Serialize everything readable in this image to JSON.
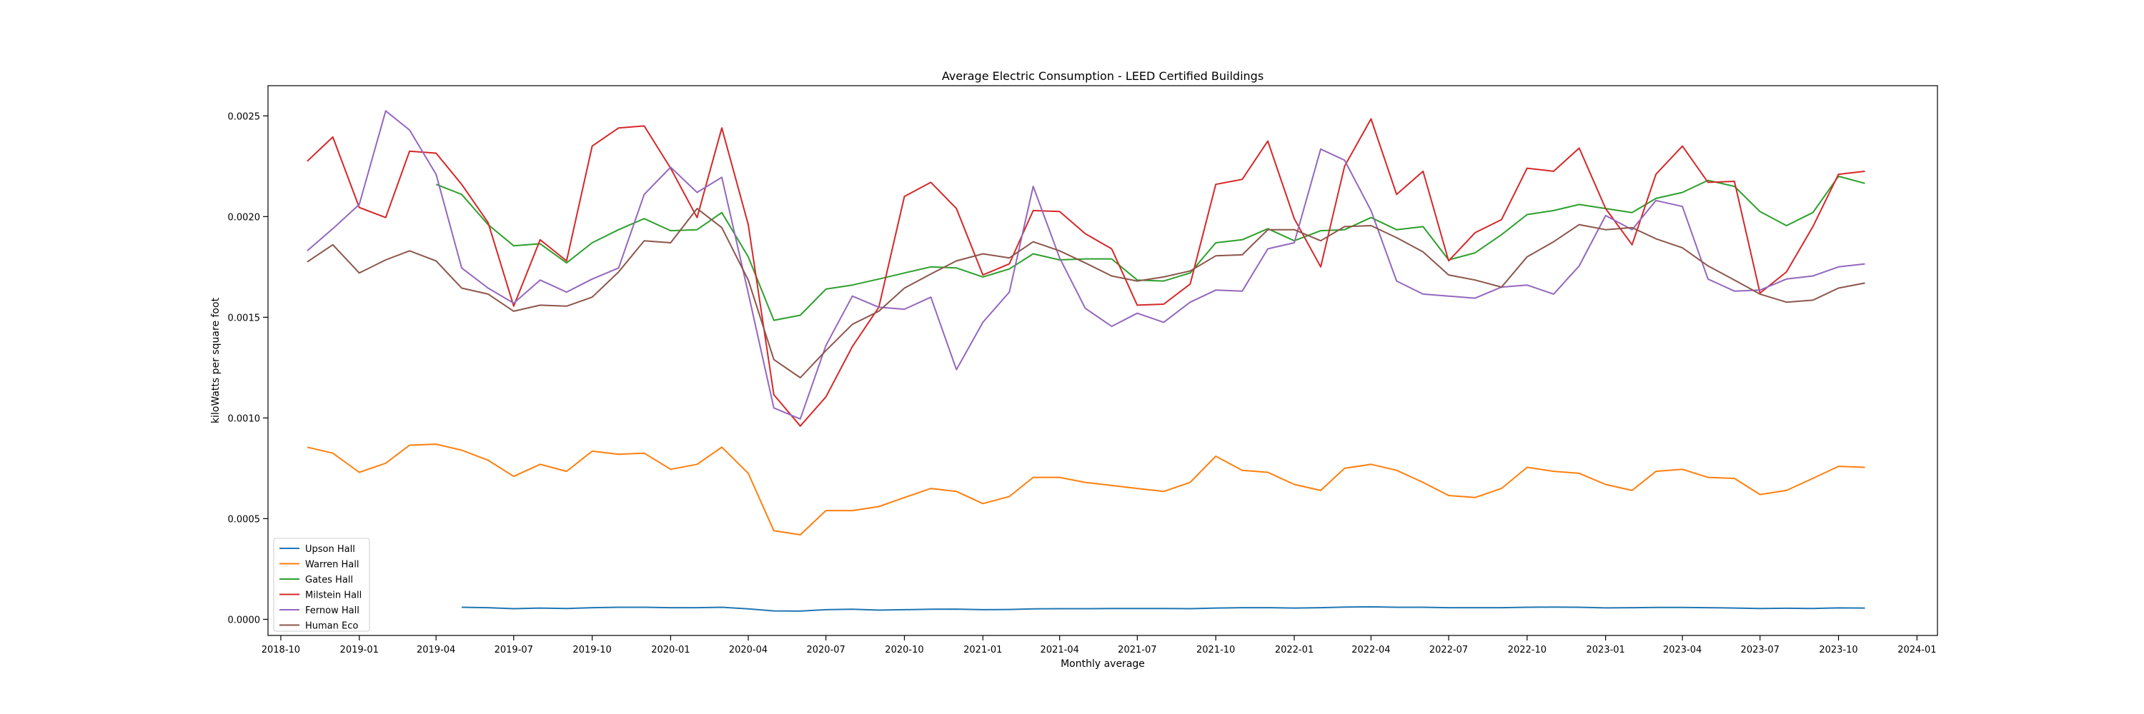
{
  "chart_data": {
    "type": "line",
    "title": "Average Electric Consumption - LEED Certified Buildings",
    "xlabel": "Monthly average",
    "ylabel": "kiloWatts per square foot",
    "xlim": [
      "2018-09-16",
      "2024-01-25"
    ],
    "ylim": [
      -8e-05,
      0.00265
    ],
    "grid": false,
    "legend_position": "lower-left",
    "x_ticks": [
      "2018-10",
      "2019-01",
      "2019-04",
      "2019-07",
      "2019-10",
      "2020-01",
      "2020-04",
      "2020-07",
      "2020-10",
      "2021-01",
      "2021-04",
      "2021-07",
      "2021-10",
      "2022-01",
      "2022-04",
      "2022-07",
      "2022-10",
      "2023-01",
      "2023-04",
      "2023-07",
      "2023-10",
      "2024-01"
    ],
    "y_ticks": [
      "0.0000",
      "0.0005",
      "0.0010",
      "0.0015",
      "0.0020",
      "0.0025"
    ],
    "y_tick_values": [
      0,
      0.0005,
      0.001,
      0.0015,
      0.002,
      0.0025
    ],
    "x": [
      "2018-11-01",
      "2018-12-01",
      "2019-01-01",
      "2019-02-01",
      "2019-03-01",
      "2019-04-01",
      "2019-05-01",
      "2019-06-01",
      "2019-07-01",
      "2019-08-01",
      "2019-09-01",
      "2019-10-01",
      "2019-11-01",
      "2019-12-01",
      "2020-01-01",
      "2020-02-01",
      "2020-03-01",
      "2020-04-01",
      "2020-05-01",
      "2020-06-01",
      "2020-07-01",
      "2020-08-01",
      "2020-09-01",
      "2020-10-01",
      "2020-11-01",
      "2020-12-01",
      "2021-01-01",
      "2021-02-01",
      "2021-03-01",
      "2021-04-01",
      "2021-05-01",
      "2021-06-01",
      "2021-07-01",
      "2021-08-01",
      "2021-09-01",
      "2021-10-01",
      "2021-11-01",
      "2021-12-01",
      "2022-01-01",
      "2022-02-01",
      "2022-03-01",
      "2022-04-01",
      "2022-05-01",
      "2022-06-01",
      "2022-07-01",
      "2022-08-01",
      "2022-09-01",
      "2022-10-01",
      "2022-11-01",
      "2022-12-01",
      "2023-01-01",
      "2023-02-01",
      "2023-03-01",
      "2023-04-01",
      "2023-05-01",
      "2023-06-01",
      "2023-07-01",
      "2023-08-01",
      "2023-09-01",
      "2023-10-01",
      "2023-11-01"
    ],
    "series": [
      {
        "name": "Upson Hall",
        "color": "#1f77b4",
        "values": [
          null,
          null,
          null,
          null,
          null,
          null,
          6e-05,
          5.8e-05,
          5.3e-05,
          5.6e-05,
          5.4e-05,
          5.8e-05,
          6e-05,
          6e-05,
          5.8e-05,
          5.8e-05,
          6e-05,
          5.2e-05,
          4.2e-05,
          4.1e-05,
          4.8e-05,
          5e-05,
          4.6e-05,
          4.8e-05,
          5e-05,
          5.1e-05,
          4.8e-05,
          4.9e-05,
          5.2e-05,
          5.3e-05,
          5.3e-05,
          5.4e-05,
          5.4e-05,
          5.4e-05,
          5.3e-05,
          5.6e-05,
          5.8e-05,
          5.8e-05,
          5.6e-05,
          5.8e-05,
          6.1e-05,
          6.2e-05,
          6e-05,
          6e-05,
          5.8e-05,
          5.8e-05,
          5.8e-05,
          6e-05,
          6.1e-05,
          6e-05,
          5.7e-05,
          5.8e-05,
          5.9e-05,
          5.9e-05,
          5.8e-05,
          5.6e-05,
          5.4e-05,
          5.5e-05,
          5.4e-05,
          5.7e-05,
          5.6e-05
        ]
      },
      {
        "name": "Warren Hall",
        "color": "#ff7f0e",
        "values": [
          0.000855,
          0.000825,
          0.00073,
          0.000775,
          0.000865,
          0.00087,
          0.00084,
          0.00079,
          0.00071,
          0.00077,
          0.000735,
          0.000835,
          0.00082,
          0.000825,
          0.000745,
          0.00077,
          0.000855,
          0.000725,
          0.00044,
          0.00042,
          0.00054,
          0.00054,
          0.00056,
          0.000605,
          0.00065,
          0.000635,
          0.000575,
          0.00061,
          0.000705,
          0.000705,
          0.00068,
          0.000665,
          0.00065,
          0.000635,
          0.00068,
          0.00081,
          0.00074,
          0.00073,
          0.00067,
          0.00064,
          0.00075,
          0.00077,
          0.00074,
          0.00068,
          0.000615,
          0.000605,
          0.00065,
          0.000755,
          0.000735,
          0.000725,
          0.00067,
          0.00064,
          0.000735,
          0.000745,
          0.000705,
          0.0007,
          0.00062,
          0.00064,
          0.0007,
          0.00076,
          0.000755
        ]
      },
      {
        "name": "Gates Hall",
        "color": "#2ca02c",
        "values": [
          null,
          null,
          null,
          null,
          null,
          0.00216,
          0.00211,
          0.00196,
          0.001855,
          0.001865,
          0.00177,
          0.00187,
          0.001935,
          0.00199,
          0.00193,
          0.001935,
          0.00202,
          0.0018,
          0.001485,
          0.00151,
          0.00164,
          0.00166,
          0.00169,
          0.00172,
          0.00175,
          0.001745,
          0.0017,
          0.00174,
          0.001815,
          0.001785,
          0.00179,
          0.00179,
          0.001685,
          0.00168,
          0.00172,
          0.00187,
          0.001885,
          0.00194,
          0.00188,
          0.00193,
          0.001935,
          0.001995,
          0.001935,
          0.00195,
          0.001785,
          0.00182,
          0.00191,
          0.00201,
          0.00203,
          0.00206,
          0.00204,
          0.00202,
          0.00209,
          0.00212,
          0.00218,
          0.00215,
          0.002025,
          0.001955,
          0.00202,
          0.0022,
          0.002165
        ]
      },
      {
        "name": "Milstein Hall",
        "color": "#d62728",
        "values": [
          0.002275,
          0.002395,
          0.002045,
          0.001995,
          0.002325,
          0.002315,
          0.00216,
          0.00197,
          0.001555,
          0.001885,
          0.00178,
          0.00235,
          0.00244,
          0.00245,
          0.00224,
          0.001995,
          0.00244,
          0.00196,
          0.001115,
          0.00096,
          0.001105,
          0.001355,
          0.00155,
          0.0021,
          0.00217,
          0.00204,
          0.00171,
          0.001765,
          0.00203,
          0.002025,
          0.001915,
          0.00184,
          0.00156,
          0.001565,
          0.001665,
          0.00216,
          0.002185,
          0.002375,
          0.00199,
          0.00175,
          0.00225,
          0.002485,
          0.00211,
          0.002225,
          0.00178,
          0.00192,
          0.001985,
          0.00224,
          0.002225,
          0.00234,
          0.00204,
          0.00186,
          0.00221,
          0.00235,
          0.00217,
          0.002175,
          0.00162,
          0.001725,
          0.00195,
          0.00221,
          0.002225
        ]
      },
      {
        "name": "Fernow Hall",
        "color": "#9467bd",
        "values": [
          0.00183,
          0.00194,
          0.00206,
          0.002525,
          0.00243,
          0.00221,
          0.001745,
          0.001645,
          0.00157,
          0.001685,
          0.001625,
          0.00169,
          0.001745,
          0.00211,
          0.002245,
          0.00212,
          0.002195,
          0.00162,
          0.00105,
          0.000995,
          0.00136,
          0.001605,
          0.00155,
          0.00154,
          0.0016,
          0.00124,
          0.001475,
          0.001625,
          0.00215,
          0.001795,
          0.001545,
          0.001455,
          0.00152,
          0.001475,
          0.001575,
          0.001635,
          0.00163,
          0.00184,
          0.00187,
          0.002335,
          0.00228,
          0.00203,
          0.00168,
          0.001615,
          0.001605,
          0.001595,
          0.00165,
          0.00166,
          0.001615,
          0.001755,
          0.002005,
          0.001935,
          0.00208,
          0.00205,
          0.00169,
          0.00163,
          0.001635,
          0.00169,
          0.001705,
          0.00175,
          0.001765
        ]
      },
      {
        "name": "Human Eco",
        "color": "#8c564b",
        "values": [
          0.001775,
          0.00186,
          0.00172,
          0.001785,
          0.00183,
          0.00178,
          0.001645,
          0.001615,
          0.00153,
          0.00156,
          0.001555,
          0.0016,
          0.001725,
          0.00188,
          0.00187,
          0.00204,
          0.001945,
          0.001685,
          0.00129,
          0.0012,
          0.001335,
          0.001465,
          0.00153,
          0.001645,
          0.001715,
          0.00178,
          0.001815,
          0.001795,
          0.001875,
          0.00183,
          0.00177,
          0.001705,
          0.00168,
          0.0017,
          0.00173,
          0.001805,
          0.00181,
          0.001935,
          0.001935,
          0.00188,
          0.00195,
          0.001955,
          0.001895,
          0.001825,
          0.00171,
          0.001685,
          0.00165,
          0.0018,
          0.001875,
          0.00196,
          0.001935,
          0.001945,
          0.00189,
          0.001845,
          0.001755,
          0.001685,
          0.001615,
          0.001575,
          0.001585,
          0.001645,
          0.00167
        ]
      }
    ]
  }
}
